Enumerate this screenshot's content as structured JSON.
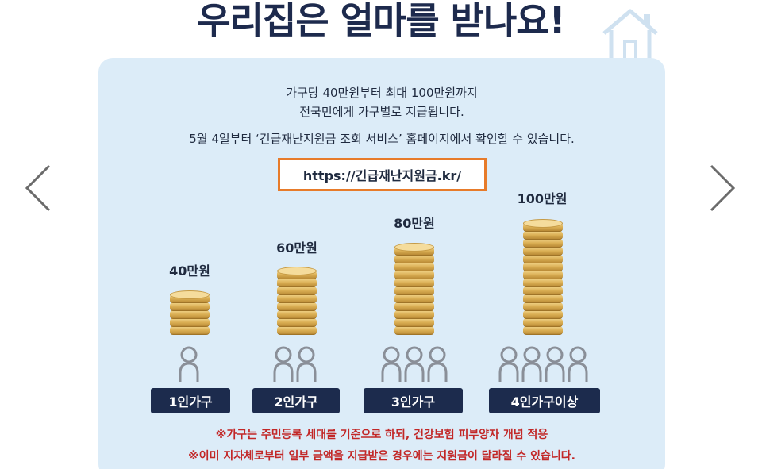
{
  "headline": "우리집은 얼마를 받나요!",
  "description": {
    "line1": "가구당 40만원부터 최대 100만원까지",
    "line2": "전국민에게 가구별로 지급됩니다.",
    "line3": "5월 4일부터 ‘긴급재난지원금 조회 서비스’ 홈페이지에서 확인할 수 있습니다."
  },
  "url": "https://긴급재난지원금.kr/",
  "households": [
    {
      "amount": "40만원",
      "badge": "1인가구",
      "people": 1,
      "coins": 5
    },
    {
      "amount": "60만원",
      "badge": "2인가구",
      "people": 2,
      "coins": 8
    },
    {
      "amount": "80만원",
      "badge": "3인가구",
      "people": 3,
      "coins": 11
    },
    {
      "amount": "100만원",
      "badge": "4인가구이상",
      "people": 4,
      "coins": 14
    }
  ],
  "notes": {
    "note1": "※가구는 주민등록 세대를 기준으로 하되, 건강보험 피부양자 개념 적용",
    "note2": "※이미 지자체로부터 일부 금액을 지급받은 경우에는 지원금이 달라질 수 있습니다."
  },
  "icons": {
    "nav_prev": "chevron-left-icon",
    "nav_next": "chevron-right-icon",
    "house": "house-outline-icon",
    "person": "person-outline-icon",
    "coin_stack": "coin-stack-icon"
  },
  "colors": {
    "panel": "#dcecf8",
    "badge": "#1c2b4d",
    "url_border": "#e77b2a",
    "note_text": "#c22727",
    "coin": "#d9ad52"
  }
}
